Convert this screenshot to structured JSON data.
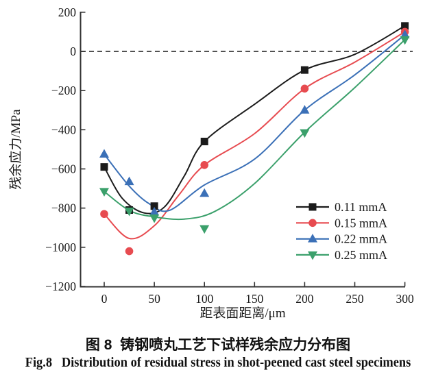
{
  "figure_captions": {
    "caption_cn": "图 8  铸钢喷丸工艺下试样残余应力分布图",
    "caption_en": "Fig.8   Distribution of residual stress in shot-peened cast steel specimens"
  },
  "chart_data": {
    "type": "line",
    "xlabel": "距表面距离/μm",
    "ylabel": "残余应力/MPa",
    "xlim": [
      0,
      300
    ],
    "ylim": [
      -1200,
      200
    ],
    "x_ticks": [
      0,
      50,
      100,
      150,
      200,
      250,
      300
    ],
    "y_ticks": [
      200,
      0,
      -200,
      -400,
      -600,
      -800,
      -1000,
      -1200
    ],
    "grid": false,
    "zero_reference_line": {
      "y": 0,
      "style": "dashed",
      "color": "#3a3a3a"
    },
    "legend_position": "lower-right",
    "series": [
      {
        "name": "0.11 mmA",
        "color": "#1b1b1b",
        "marker": "square",
        "x": [
          0,
          25,
          50,
          100,
          200,
          300
        ],
        "y": [
          -590,
          -810,
          -790,
          -460,
          -95,
          130
        ],
        "fit_curve": [
          [
            0,
            -590
          ],
          [
            18,
            -750
          ],
          [
            40,
            -825
          ],
          [
            60,
            -795
          ],
          [
            80,
            -635
          ],
          [
            100,
            -460
          ],
          [
            150,
            -270
          ],
          [
            200,
            -95
          ],
          [
            250,
            -15
          ],
          [
            300,
            130
          ]
        ]
      },
      {
        "name": "0.15 mmA",
        "color": "#e74b50",
        "marker": "circle",
        "x": [
          0,
          25,
          100,
          200,
          300
        ],
        "y": [
          -830,
          -1020,
          -580,
          -190,
          100
        ],
        "fit_curve": [
          [
            0,
            -830
          ],
          [
            25,
            -955
          ],
          [
            50,
            -890
          ],
          [
            75,
            -730
          ],
          [
            100,
            -580
          ],
          [
            150,
            -420
          ],
          [
            200,
            -190
          ],
          [
            250,
            -55
          ],
          [
            300,
            100
          ]
        ]
      },
      {
        "name": "0.22 mmA",
        "color": "#3b70b7",
        "marker": "triangle-up",
        "x": [
          0,
          25,
          50,
          100,
          200,
          300
        ],
        "y": [
          -525,
          -665,
          -820,
          -725,
          -300,
          85
        ],
        "fit_curve": [
          [
            0,
            -525
          ],
          [
            25,
            -688
          ],
          [
            45,
            -778
          ],
          [
            65,
            -812
          ],
          [
            100,
            -682
          ],
          [
            150,
            -550
          ],
          [
            200,
            -300
          ],
          [
            250,
            -120
          ],
          [
            300,
            85
          ]
        ]
      },
      {
        "name": "0.25 mmA",
        "color": "#3ba06b",
        "marker": "triangle-down",
        "x": [
          0,
          25,
          50,
          100,
          200,
          300
        ],
        "y": [
          -715,
          -815,
          -850,
          -905,
          -415,
          60
        ],
        "fit_curve": [
          [
            0,
            -715
          ],
          [
            25,
            -812
          ],
          [
            50,
            -845
          ],
          [
            80,
            -856
          ],
          [
            110,
            -818
          ],
          [
            150,
            -675
          ],
          [
            200,
            -413
          ],
          [
            250,
            -185
          ],
          [
            300,
            60
          ]
        ]
      }
    ]
  }
}
